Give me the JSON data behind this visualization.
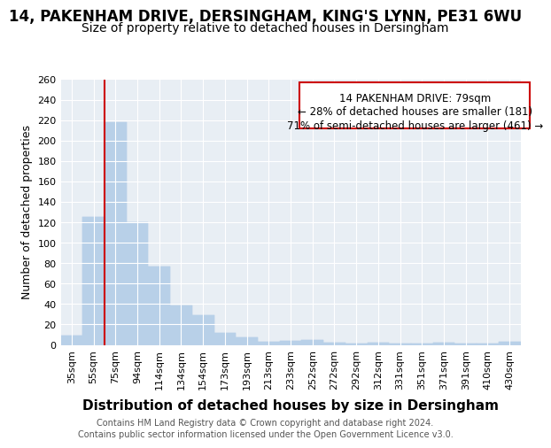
{
  "title1": "14, PAKENHAM DRIVE, DERSINGHAM, KING'S LYNN, PE31 6WU",
  "title2": "Size of property relative to detached houses in Dersingham",
  "xlabel": "Distribution of detached houses by size in Dersingham",
  "ylabel": "Number of detached properties",
  "footer1": "Contains HM Land Registry data © Crown copyright and database right 2024.",
  "footer2": "Contains public sector information licensed under the Open Government Licence v3.0.",
  "categories": [
    "35sqm",
    "55sqm",
    "75sqm",
    "94sqm",
    "114sqm",
    "134sqm",
    "154sqm",
    "173sqm",
    "193sqm",
    "213sqm",
    "233sqm",
    "252sqm",
    "272sqm",
    "292sqm",
    "312sqm",
    "331sqm",
    "351sqm",
    "371sqm",
    "391sqm",
    "410sqm",
    "430sqm"
  ],
  "values": [
    9,
    125,
    218,
    120,
    77,
    39,
    29,
    12,
    7,
    3,
    4,
    5,
    2,
    1,
    2,
    1,
    1,
    2,
    1,
    1,
    3
  ],
  "bar_color": "#b8d0e8",
  "highlight_line_color": "#cc0000",
  "highlight_bar_index": 2,
  "box_text_line1": "14 PAKENHAM DRIVE: 79sqm",
  "box_text_line2": "← 28% of detached houses are smaller (181)",
  "box_text_line3": "71% of semi-detached houses are larger (461) →",
  "box_color": "#cc0000",
  "ylim": [
    0,
    260
  ],
  "yticks": [
    0,
    20,
    40,
    60,
    80,
    100,
    120,
    140,
    160,
    180,
    200,
    220,
    240,
    260
  ],
  "plot_bg_color": "#e8eef4",
  "grid_color": "#ffffff",
  "fig_bg_color": "#ffffff",
  "title_fontsize": 12,
  "subtitle_fontsize": 10,
  "xlabel_fontsize": 11,
  "ylabel_fontsize": 9,
  "tick_fontsize": 8
}
